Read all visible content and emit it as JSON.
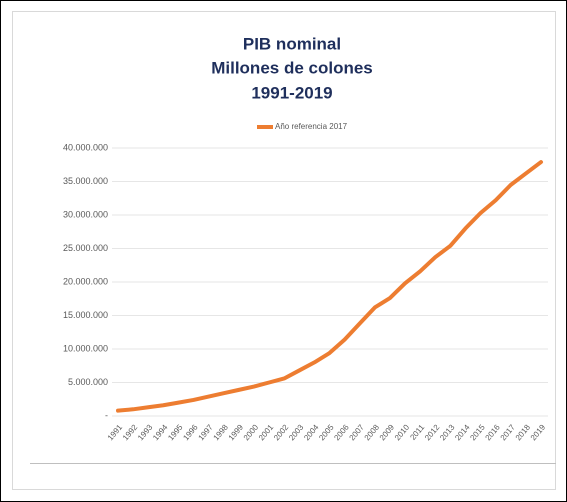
{
  "chart_data": {
    "type": "line",
    "title": "PIB nominal",
    "subtitle": [
      "Millones de colones",
      "1991-2019"
    ],
    "categories": [
      "1991",
      "1992",
      "1993",
      "1994",
      "1995",
      "1996",
      "1997",
      "1998",
      "1999",
      "2000",
      "2001",
      "2002",
      "2003",
      "2004",
      "2005",
      "2006",
      "2007",
      "2008",
      "2009",
      "2010",
      "2011",
      "2012",
      "2013",
      "2014",
      "2015",
      "2016",
      "2017",
      "2018",
      "2019"
    ],
    "series": [
      {
        "name": "Año referencia 2017",
        "color": "#ed7d31",
        "values": [
          800000,
          1000000,
          1300000,
          1600000,
          2000000,
          2400000,
          2900000,
          3400000,
          3900000,
          4400000,
          5000000,
          5600000,
          6800000,
          8000000,
          9400000,
          11400000,
          13800000,
          16200000,
          17600000,
          19800000,
          21600000,
          23700000,
          25400000,
          28000000,
          30300000,
          32200000,
          34500000,
          36200000,
          37900000
        ]
      }
    ],
    "ylim": [
      0,
      40000000
    ],
    "yticks": [
      {
        "value": 0,
        "label": "-"
      },
      {
        "value": 5000000,
        "label": "5.000.000"
      },
      {
        "value": 10000000,
        "label": "10.000.000"
      },
      {
        "value": 15000000,
        "label": "15.000.000"
      },
      {
        "value": 20000000,
        "label": "20.000.000"
      },
      {
        "value": 25000000,
        "label": "25.000.000"
      },
      {
        "value": 30000000,
        "label": "30.000.000"
      },
      {
        "value": 35000000,
        "label": "35.000.000"
      },
      {
        "value": 40000000,
        "label": "40.000.000"
      }
    ],
    "grid": true,
    "legend": "top"
  }
}
